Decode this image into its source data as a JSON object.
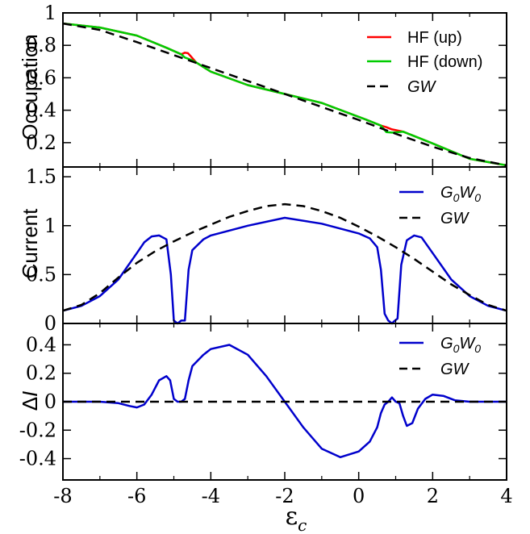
{
  "chart_data": [
    {
      "type": "line",
      "ylabel": "Occupation",
      "xlim": [
        -8,
        4
      ],
      "ylim": [
        0.05,
        1.0
      ],
      "yticks": [
        "0.2",
        "0.4",
        "0.6",
        "0.8",
        "1"
      ],
      "legend_position": "top-right",
      "series": [
        {
          "name": "HF (up)",
          "color": "#ff0000",
          "style": "solid",
          "x": [
            -8,
            -7,
            -6,
            -5.2,
            -4.8,
            -4.7,
            -4.62,
            -4.55,
            -4.4,
            -4,
            -3,
            -2,
            -1,
            0.2,
            0.6,
            0.75,
            0.9,
            1.2,
            2,
            3,
            4
          ],
          "y": [
            0.935,
            0.91,
            0.86,
            0.785,
            0.745,
            0.755,
            0.752,
            0.735,
            0.695,
            0.638,
            0.555,
            0.5,
            0.445,
            0.342,
            0.305,
            0.295,
            0.282,
            0.268,
            0.195,
            0.1,
            0.06
          ]
        },
        {
          "name": "HF (down)",
          "color": "#00cc00",
          "style": "solid",
          "x": [
            -8,
            -7,
            -6,
            -5.2,
            -4.8,
            -4.7,
            -4.62,
            -4.55,
            -4.4,
            -4,
            -3,
            -2,
            -1,
            0.2,
            0.6,
            0.75,
            0.9,
            1.2,
            2,
            3,
            4
          ],
          "y": [
            0.935,
            0.91,
            0.86,
            0.785,
            0.745,
            0.725,
            0.718,
            0.712,
            0.695,
            0.638,
            0.555,
            0.5,
            0.445,
            0.342,
            0.305,
            0.265,
            0.262,
            0.268,
            0.195,
            0.1,
            0.06
          ]
        },
        {
          "name": "GW",
          "color": "#000000",
          "style": "dashed",
          "x": [
            -8,
            -7,
            -6,
            -5,
            -4,
            -3,
            -2,
            -1,
            0,
            1,
            2,
            3,
            4
          ],
          "y": [
            0.935,
            0.895,
            0.82,
            0.74,
            0.66,
            0.58,
            0.5,
            0.42,
            0.34,
            0.255,
            0.175,
            0.105,
            0.06
          ]
        }
      ]
    },
    {
      "type": "line",
      "ylabel": "Current",
      "xlim": [
        -8,
        4
      ],
      "ylim": [
        0,
        1.6
      ],
      "yticks": [
        "0",
        "0.5",
        "1",
        "1.5"
      ],
      "legend_position": "top-right",
      "series": [
        {
          "name": "G0W0",
          "color": "#0000cc",
          "style": "solid",
          "x": [
            -8,
            -7.5,
            -7,
            -6.5,
            -6,
            -5.8,
            -5.6,
            -5.4,
            -5.2,
            -5.08,
            -5,
            -4.9,
            -4.8,
            -4.7,
            -4.6,
            -4.5,
            -4.2,
            -4,
            -3,
            -2,
            -1,
            0,
            0.3,
            0.5,
            0.6,
            0.7,
            0.8,
            0.9,
            0.95,
            1.05,
            1.15,
            1.3,
            1.5,
            1.7,
            2,
            2.5,
            3,
            3.5,
            4
          ],
          "y": [
            0.13,
            0.18,
            0.28,
            0.45,
            0.72,
            0.83,
            0.89,
            0.9,
            0.86,
            0.5,
            0.03,
            0.0,
            0.03,
            0.03,
            0.55,
            0.75,
            0.86,
            0.9,
            1.0,
            1.08,
            1.02,
            0.92,
            0.87,
            0.78,
            0.55,
            0.1,
            0.03,
            0.0,
            0.02,
            0.05,
            0.6,
            0.85,
            0.9,
            0.88,
            0.72,
            0.45,
            0.28,
            0.18,
            0.13
          ]
        },
        {
          "name": "GW",
          "color": "#000000",
          "style": "dashed",
          "x": [
            -8,
            -7.5,
            -7,
            -6.5,
            -6,
            -5.5,
            -5,
            -4.5,
            -4,
            -3.5,
            -3,
            -2.5,
            -2,
            -1.5,
            -1,
            -0.5,
            0,
            0.5,
            1,
            1.5,
            2,
            2.5,
            3,
            3.5,
            4
          ],
          "y": [
            0.13,
            0.19,
            0.31,
            0.47,
            0.62,
            0.74,
            0.84,
            0.93,
            1.01,
            1.09,
            1.15,
            1.2,
            1.22,
            1.2,
            1.15,
            1.08,
            0.99,
            0.89,
            0.78,
            0.66,
            0.53,
            0.4,
            0.29,
            0.19,
            0.13
          ]
        }
      ]
    },
    {
      "type": "line",
      "ylabel": "ΔI",
      "xlabel": "εc",
      "xlim": [
        -8,
        4
      ],
      "ylim": [
        -0.55,
        0.55
      ],
      "xticks": [
        "-8",
        "-6",
        "-4",
        "-2",
        "0",
        "2",
        "4"
      ],
      "yticks": [
        "-0.4",
        "-0.2",
        "0",
        "0.2",
        "0.4"
      ],
      "legend_position": "top-right",
      "series": [
        {
          "name": "G0W0",
          "color": "#0000cc",
          "style": "solid",
          "x": [
            -8,
            -7,
            -6.5,
            -6.2,
            -6,
            -5.8,
            -5.6,
            -5.4,
            -5.2,
            -5.1,
            -5,
            -4.9,
            -4.8,
            -4.7,
            -4.6,
            -4.5,
            -4.2,
            -4,
            -3.5,
            -3,
            -2.5,
            -2,
            -1.5,
            -1,
            -0.5,
            0,
            0.3,
            0.5,
            0.6,
            0.7,
            0.8,
            0.9,
            1.0,
            1.1,
            1.2,
            1.3,
            1.45,
            1.6,
            1.8,
            2,
            2.3,
            2.6,
            3,
            4
          ],
          "y": [
            0,
            0,
            -0.01,
            -0.03,
            -0.04,
            -0.02,
            0.05,
            0.15,
            0.18,
            0.15,
            0.02,
            0,
            0,
            0.02,
            0.15,
            0.25,
            0.33,
            0.37,
            0.4,
            0.33,
            0.18,
            0,
            -0.18,
            -0.33,
            -0.39,
            -0.35,
            -0.28,
            -0.18,
            -0.08,
            -0.02,
            0,
            0.03,
            0,
            -0.01,
            -0.1,
            -0.17,
            -0.15,
            -0.05,
            0.02,
            0.05,
            0.04,
            0.01,
            0,
            0
          ]
        },
        {
          "name": "GW",
          "color": "#000000",
          "style": "dashed",
          "x": [
            -8,
            4
          ],
          "y": [
            0,
            0
          ]
        }
      ]
    }
  ]
}
